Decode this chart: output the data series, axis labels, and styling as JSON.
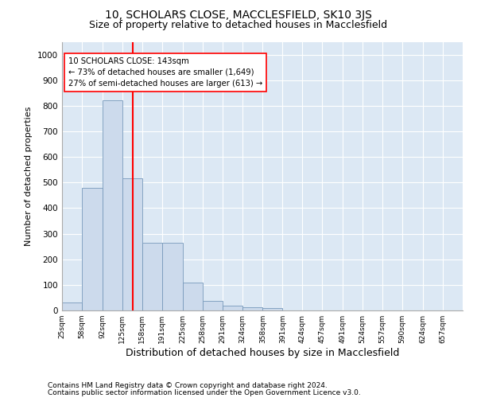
{
  "title": "10, SCHOLARS CLOSE, MACCLESFIELD, SK10 3JS",
  "subtitle": "Size of property relative to detached houses in Macclesfield",
  "xlabel": "Distribution of detached houses by size in Macclesfield",
  "ylabel": "Number of detached properties",
  "footnote1": "Contains HM Land Registry data © Crown copyright and database right 2024.",
  "footnote2": "Contains public sector information licensed under the Open Government Licence v3.0.",
  "annotation_line1": "10 SCHOLARS CLOSE: 143sqm",
  "annotation_line2": "← 73% of detached houses are smaller (1,649)",
  "annotation_line3": "27% of semi-detached houses are larger (613) →",
  "bar_color": "#ccdaec",
  "bar_edge_color": "#7799bb",
  "red_line_x": 143,
  "bin_edges": [
    25,
    58,
    92,
    125,
    158,
    191,
    225,
    258,
    291,
    324,
    358,
    391,
    424,
    457,
    491,
    524,
    557,
    590,
    624,
    657,
    690
  ],
  "bar_heights": [
    30,
    480,
    820,
    515,
    265,
    265,
    110,
    38,
    20,
    12,
    10,
    0,
    0,
    0,
    0,
    0,
    0,
    0,
    0,
    0
  ],
  "ylim": [
    0,
    1050
  ],
  "yticks": [
    0,
    100,
    200,
    300,
    400,
    500,
    600,
    700,
    800,
    900,
    1000
  ],
  "axes_background": "#dce8f4",
  "grid_color": "#ffffff",
  "title_fontsize": 10,
  "subtitle_fontsize": 9,
  "footnote_fontsize": 6.5,
  "ylabel_fontsize": 8,
  "xlabel_fontsize": 9
}
